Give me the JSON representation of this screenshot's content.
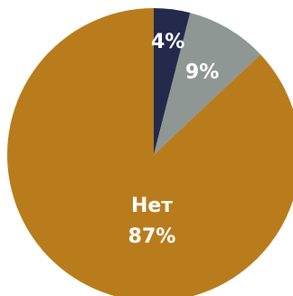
{
  "chart_data": {
    "type": "pie",
    "categories": [
      null,
      null,
      "Нет"
    ],
    "values": [
      4,
      9,
      87
    ],
    "value_labels": [
      "4%",
      "9%",
      "87%"
    ],
    "colors": [
      "#232a4b",
      "#8f9794",
      "#b97c1c"
    ]
  }
}
